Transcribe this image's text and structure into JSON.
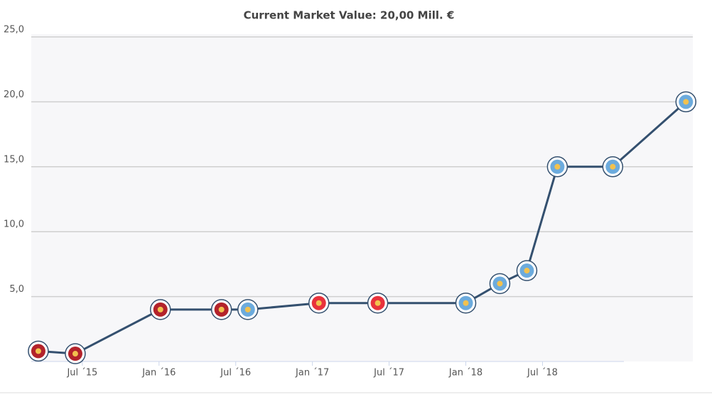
{
  "chart_data": {
    "type": "line",
    "title": "Current Market Value: 20,00 Mill. €",
    "x": [
      2015.213,
      2015.454,
      2016.009,
      2016.407,
      2016.579,
      2017.042,
      2017.426,
      2018.0,
      2018.222,
      2018.398,
      2018.597,
      2018.958,
      2019.435
    ],
    "series": [
      {
        "color": "#34506f",
        "values": [
          0.8,
          0.6,
          4.0,
          4.0,
          4.0,
          4.5,
          4.5,
          4.5,
          6.0,
          7.0,
          15.0,
          15.0,
          20.0
        ],
        "marker_colors": [
          "#b3232b",
          "#b3232b",
          "#b3232b",
          "#b3232b",
          "#6cabdd",
          "#e8323c",
          "#e8323c",
          "#6cabdd",
          "#6cabdd",
          "#6cabdd",
          "#6cabdd",
          "#6cabdd",
          "#6cabdd"
        ]
      }
    ],
    "xlim": [
      2015.167,
      2019.48
    ],
    "xticks": [
      {
        "value": 2015.5,
        "label": "Jul ´15"
      },
      {
        "value": 2016.0,
        "label": "Jan ´16"
      },
      {
        "value": 2016.5,
        "label": "Jul ´16"
      },
      {
        "value": 2017.0,
        "label": "Jan ´17"
      },
      {
        "value": 2017.5,
        "label": "Jul ´17"
      },
      {
        "value": 2018.0,
        "label": "Jan ´18"
      },
      {
        "value": 2018.5,
        "label": "Jul ´18"
      }
    ],
    "ylim": [
      0,
      25
    ],
    "yticks": [
      {
        "value": 5,
        "label": "5,0"
      },
      {
        "value": 10,
        "label": "10,0"
      },
      {
        "value": 15,
        "label": "15,0"
      },
      {
        "value": 20,
        "label": "20,0"
      },
      {
        "value": 25,
        "label": "25,0"
      }
    ],
    "grid": true
  }
}
